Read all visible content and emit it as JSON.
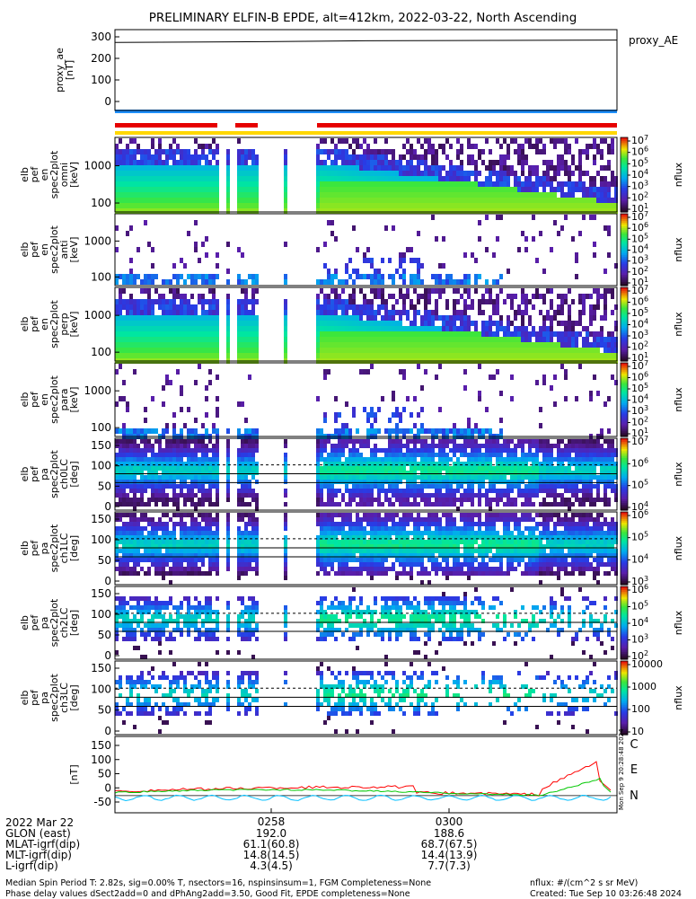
{
  "title": "PRELIMINARY ELFIN-B EPDE, alt=412km, 2022-03-22, North Ascending",
  "chart_data": {
    "type": "heatmap",
    "title": "PRELIMINARY ELFIN-B EPDE, alt=412km, 2022-03-22, North Ascending",
    "panels": [
      {
        "id": "proxy_ae",
        "type": "line",
        "ylabel": [
          "proxy_ae",
          "[nT]"
        ],
        "legend": "proxy_AE",
        "yticks": [
          "300",
          "200",
          "100",
          "0"
        ],
        "ylim": [
          0,
          310
        ],
        "series": [
          {
            "name": "proxy_AE",
            "x": [
              0,
              0.3,
              0.5,
              1.0
            ],
            "values": [
              255,
              258,
              262,
              265
            ]
          }
        ]
      },
      {
        "id": "omni",
        "type": "heatmap",
        "ylabel": [
          "elb",
          "pef",
          "en",
          "spec2plot",
          "omni",
          "[keV]"
        ],
        "yticks": [
          "1000",
          "100"
        ],
        "zlabel": "nflux",
        "zticks": [
          "10^7",
          "10^6",
          "10^5",
          "10^4",
          "10^3",
          "10^2",
          "10^1"
        ]
      },
      {
        "id": "anti",
        "type": "heatmap",
        "ylabel": [
          "elb",
          "pef",
          "en",
          "spec2plot",
          "anti",
          "[keV]"
        ],
        "yticks": [
          "1000",
          "100"
        ],
        "zlabel": "nflux",
        "zticks": [
          "10^7",
          "10^6",
          "10^5",
          "10^4",
          "10^3",
          "10^2",
          "10^1"
        ]
      },
      {
        "id": "perp",
        "type": "heatmap",
        "ylabel": [
          "elb",
          "pef",
          "en",
          "spec2plot",
          "perp",
          "[keV]"
        ],
        "yticks": [
          "1000",
          "100"
        ],
        "zlabel": "nflux",
        "zticks": [
          "10^7",
          "10^6",
          "10^5",
          "10^4",
          "10^3",
          "10^2",
          "10^1"
        ]
      },
      {
        "id": "para",
        "type": "heatmap",
        "ylabel": [
          "elb",
          "pef",
          "en",
          "spec2plot",
          "para",
          "[keV]"
        ],
        "yticks": [
          "1000",
          "100"
        ],
        "zlabel": "nflux",
        "zticks": [
          "10^7",
          "10^6",
          "10^5",
          "10^4",
          "10^3",
          "10^2",
          "10^1"
        ]
      },
      {
        "id": "ch0LC",
        "type": "heatmap",
        "ylabel": [
          "elb",
          "pef",
          "pa",
          "spec2plot",
          "ch0LC",
          "[deg]"
        ],
        "yticks": [
          "150",
          "100",
          "50",
          "0"
        ],
        "zlabel": "nflux",
        "zticks": [
          "10^7",
          "10^6",
          "10^5",
          "10^4"
        ]
      },
      {
        "id": "ch1LC",
        "type": "heatmap",
        "ylabel": [
          "elb",
          "pef",
          "pa",
          "spec2plot",
          "ch1LC",
          "[deg]"
        ],
        "yticks": [
          "150",
          "100",
          "50",
          "0"
        ],
        "zlabel": "nflux",
        "zticks": [
          "10^6",
          "10^5",
          "10^4",
          "10^3"
        ]
      },
      {
        "id": "ch2LC",
        "type": "heatmap",
        "ylabel": [
          "elb",
          "pef",
          "pa",
          "spec2plot",
          "ch2LC",
          "[deg]"
        ],
        "yticks": [
          "150",
          "100",
          "50",
          "0"
        ],
        "zlabel": "nflux",
        "zticks": [
          "10^6",
          "10^5",
          "10^4",
          "10^3",
          "10^2"
        ]
      },
      {
        "id": "ch3LC",
        "type": "heatmap",
        "ylabel": [
          "elb",
          "pef",
          "pa",
          "spec2plot",
          "ch3LC",
          "[deg]"
        ],
        "yticks": [
          "150",
          "100",
          "50",
          "0"
        ],
        "zlabel": "nflux",
        "zticks": [
          "10000",
          "1000",
          "100",
          "10"
        ]
      },
      {
        "id": "field",
        "type": "line",
        "ylabel": [
          "[nT]"
        ],
        "yticks": [
          "150",
          "100",
          "50",
          "0",
          "-50"
        ],
        "ylim": [
          -60,
          175
        ],
        "series": [
          {
            "name": "C",
            "color": "#00bfff"
          },
          {
            "name": "E",
            "color": "#ff0000"
          },
          {
            "name": "N",
            "color": "#00c800"
          }
        ]
      }
    ],
    "xticks": [
      "0258",
      "0300"
    ],
    "side_stamp": "Mon Sep  9 20:28:48 2024"
  },
  "footer": {
    "rows": [
      {
        "label": "2022 Mar 22",
        "v1": "0258",
        "v2": "0300"
      },
      {
        "label": "GLON (east)",
        "v1": "192.0",
        "v2": "188.6"
      },
      {
        "label": "MLAT-igrf(dip)",
        "v1": "61.1(60.8)",
        "v2": "68.7(67.5)"
      },
      {
        "label": "MLT-igrf(dip)",
        "v1": "14.8(14.5)",
        "v2": "14.4(13.9)"
      },
      {
        "label": "L-igrf(dip)",
        "v1": "4.3(4.5)",
        "v2": "7.7(7.3)"
      }
    ],
    "line1": "Median Spin Period T: 2.82s, sig=0.00% T, nsectors=16, nspinsinsum=1, FGM Completeness=None",
    "line2": "Phase delay values dSect2add=0 and dPhAng2add=3.50, Good Fit, EPDE completeness=None",
    "right1": "nflux: #/(cm^2 s sr MeV)",
    "right2": "Created: Tue Sep 10 03:26:48 2024"
  },
  "colors": {
    "red_bar": "#e60000",
    "blue_bar": "#1e90ff",
    "yellow_bar": "#ffd700"
  }
}
